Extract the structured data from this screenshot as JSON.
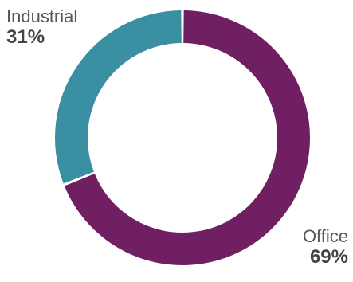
{
  "chart_data": {
    "type": "pie",
    "style": "donut",
    "categories": [
      "Industrial",
      "Office"
    ],
    "values": [
      31,
      69
    ],
    "labels": [
      "31%",
      "69%"
    ],
    "colors": [
      "#3a8fa3",
      "#701f63"
    ],
    "title": "",
    "legend": "none"
  }
}
